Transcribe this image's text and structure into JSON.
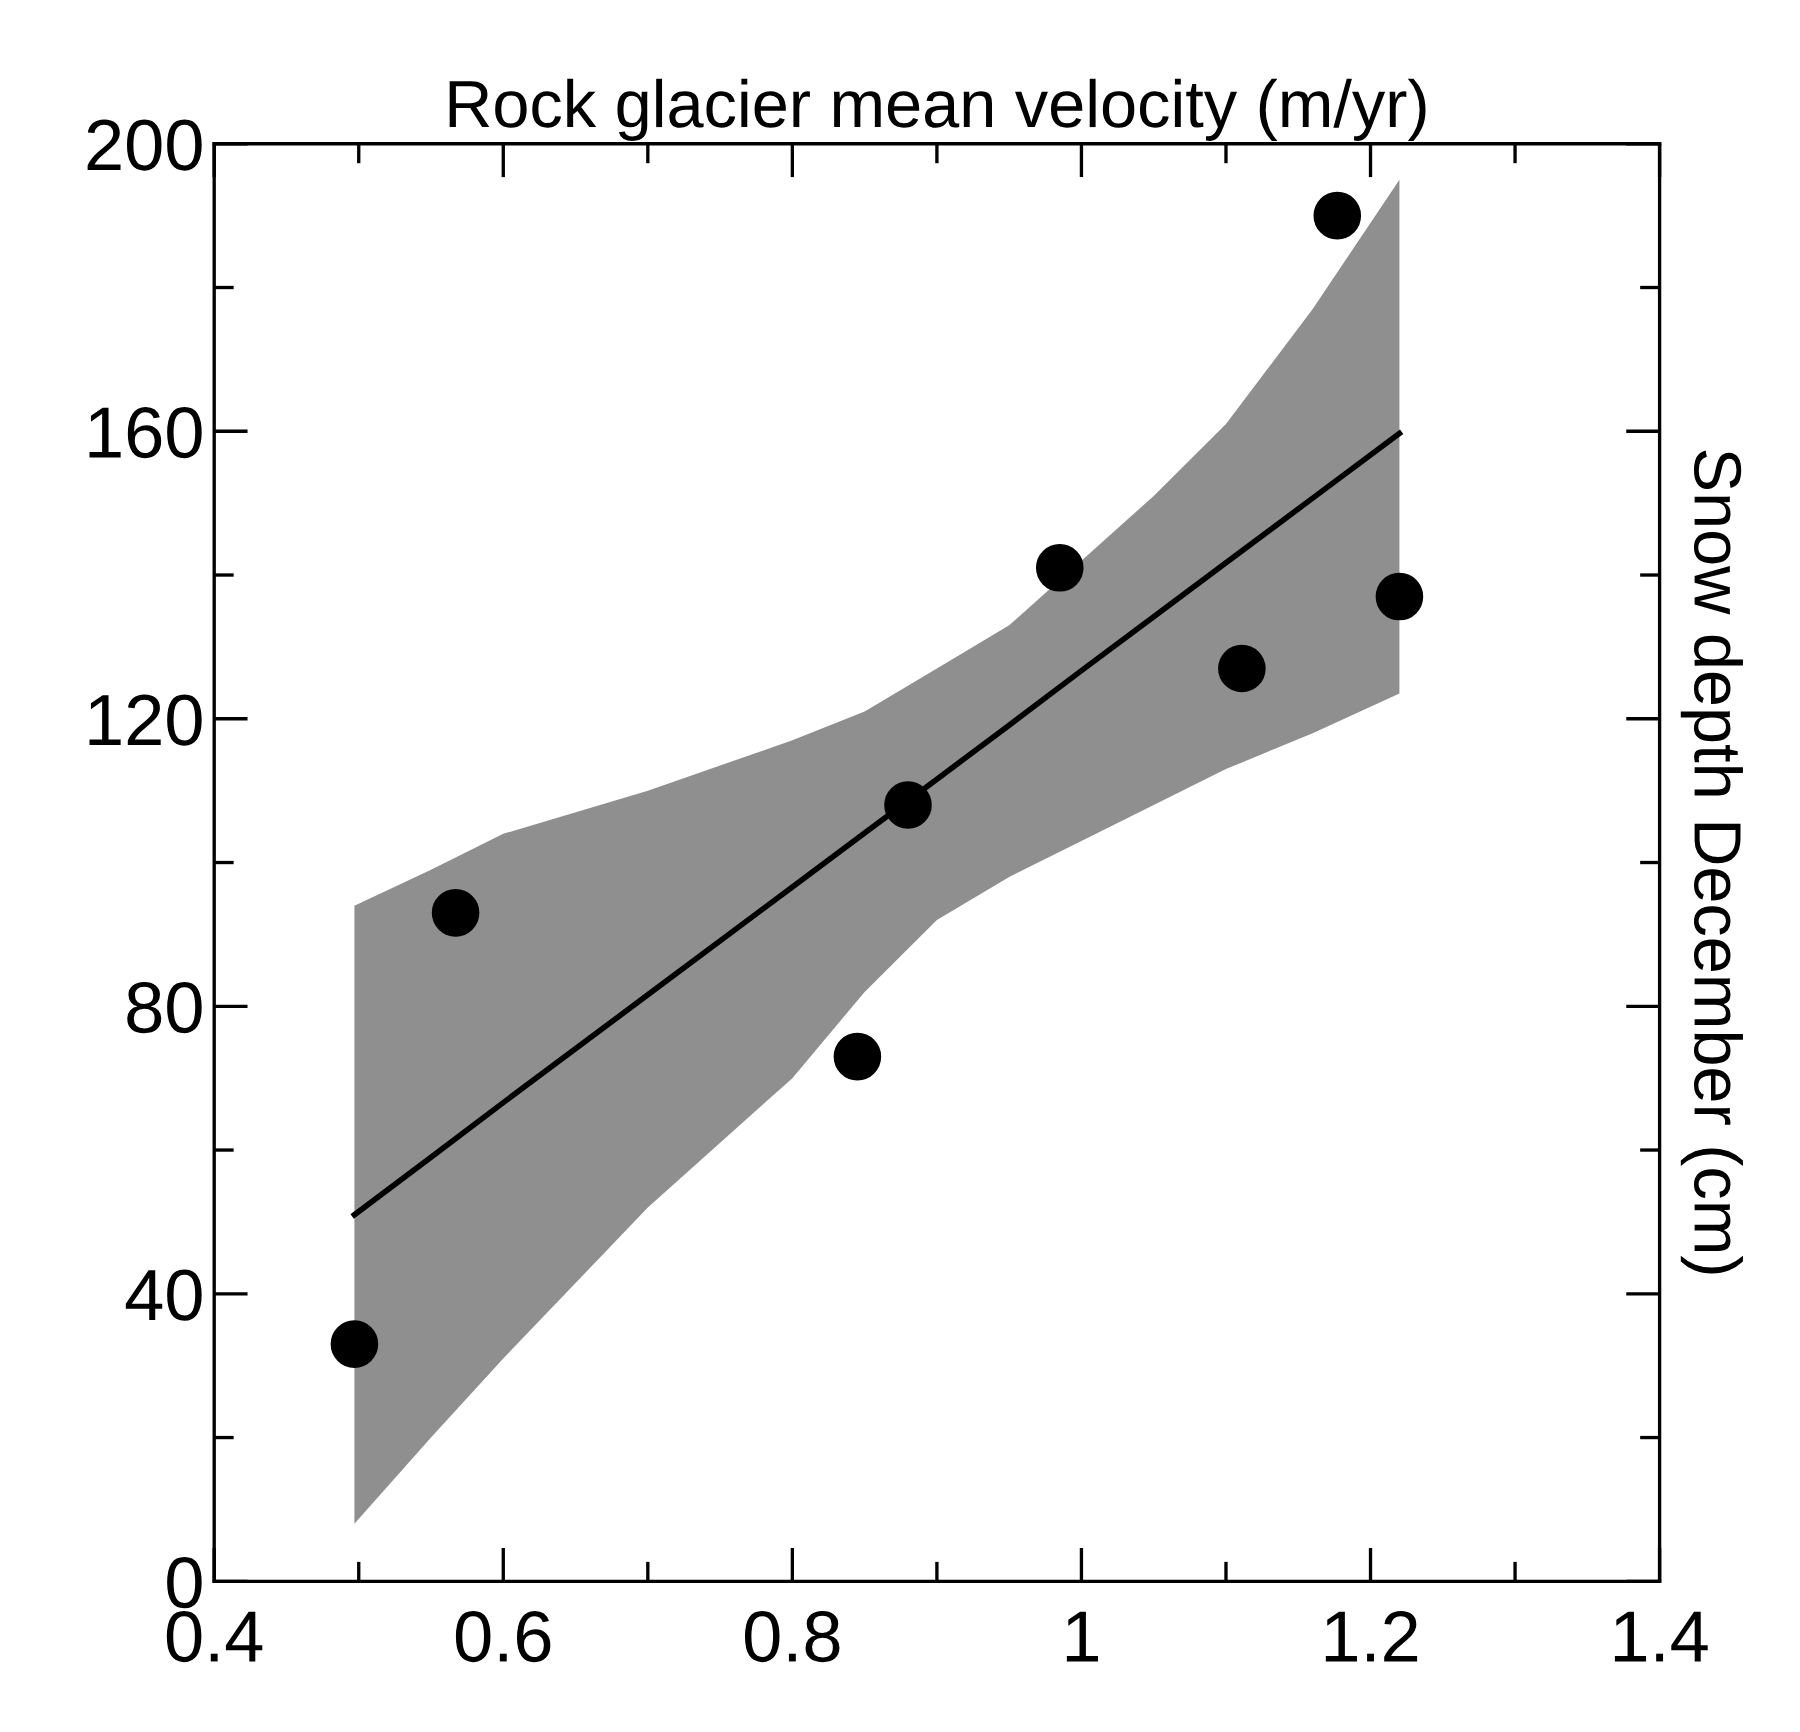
{
  "chart_data": {
    "type": "scatter",
    "xlabel": "Rock glacier mean velocity (m/yr)",
    "ylabel": "Snow depth December (cm)",
    "xlim": [
      0.4,
      1.4
    ],
    "ylim": [
      0,
      200
    ],
    "xticks": [
      0.4,
      {
        "value": 0.5,
        "label": null
      },
      0.6,
      {
        "value": 0.7,
        "label": null
      },
      0.8,
      {
        "value": 0.9,
        "label": null
      },
      1,
      {
        "value": 1.1,
        "label": null
      },
      1.2,
      {
        "value": 1.3,
        "label": null
      },
      1.4
    ],
    "yticks": [
      0,
      {
        "value": 20,
        "label": null
      },
      40,
      {
        "value": 60,
        "label": null
      },
      80,
      {
        "value": 100,
        "label": null
      },
      120,
      {
        "value": 140,
        "label": null
      },
      160,
      {
        "value": 180,
        "label": null
      },
      200
    ],
    "grid": false,
    "series": [
      {
        "marker": "circle",
        "color": "#000000",
        "x": [
          0.497,
          0.567,
          0.845,
          0.88,
          0.985,
          1.111,
          1.177,
          1.22
        ],
        "values": [
          33,
          93,
          73,
          108,
          141,
          127,
          190,
          137
        ]
      },
      {
        "type": "line",
        "marker": "none",
        "color": "#000000",
        "x": [
          0.497,
          0.55,
          0.6,
          0.7,
          0.8,
          0.85,
          0.9,
          0.95,
          1.0,
          1.05,
          1.1,
          1.16,
          1.22
        ],
        "values": [
          51,
          59,
          66.6,
          81.6,
          96.6,
          104.1,
          111.6,
          119.1,
          126.7,
          134.2,
          141.7,
          150.7,
          159.7
        ],
        "lower": [
          8,
          20,
          31,
          52,
          70,
          82,
          92,
          98,
          103,
          108,
          113,
          118,
          123.5
        ],
        "upper": [
          94,
          99,
          104,
          110,
          117,
          121,
          127,
          133,
          142,
          151,
          161,
          177,
          195
        ]
      }
    ]
  }
}
